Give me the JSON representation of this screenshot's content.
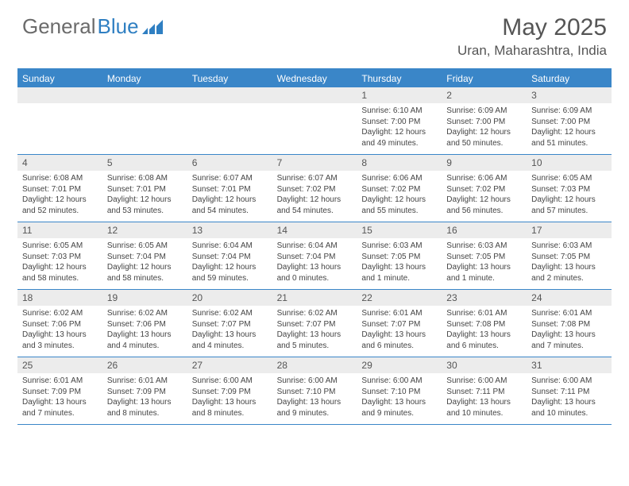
{
  "logo": {
    "word1": "General",
    "word2": "Blue"
  },
  "title": "May 2025",
  "location": "Uran, Maharashtra, India",
  "colors": {
    "header_bg": "#3a86c8",
    "daynum_bg": "#ececec",
    "text": "#555555",
    "details_text": "#444444"
  },
  "day_names": [
    "Sunday",
    "Monday",
    "Tuesday",
    "Wednesday",
    "Thursday",
    "Friday",
    "Saturday"
  ],
  "weeks": [
    [
      {
        "n": "",
        "sr": "",
        "ss": "",
        "dl": ""
      },
      {
        "n": "",
        "sr": "",
        "ss": "",
        "dl": ""
      },
      {
        "n": "",
        "sr": "",
        "ss": "",
        "dl": ""
      },
      {
        "n": "",
        "sr": "",
        "ss": "",
        "dl": ""
      },
      {
        "n": "1",
        "sr": "Sunrise: 6:10 AM",
        "ss": "Sunset: 7:00 PM",
        "dl": "Daylight: 12 hours and 49 minutes."
      },
      {
        "n": "2",
        "sr": "Sunrise: 6:09 AM",
        "ss": "Sunset: 7:00 PM",
        "dl": "Daylight: 12 hours and 50 minutes."
      },
      {
        "n": "3",
        "sr": "Sunrise: 6:09 AM",
        "ss": "Sunset: 7:00 PM",
        "dl": "Daylight: 12 hours and 51 minutes."
      }
    ],
    [
      {
        "n": "4",
        "sr": "Sunrise: 6:08 AM",
        "ss": "Sunset: 7:01 PM",
        "dl": "Daylight: 12 hours and 52 minutes."
      },
      {
        "n": "5",
        "sr": "Sunrise: 6:08 AM",
        "ss": "Sunset: 7:01 PM",
        "dl": "Daylight: 12 hours and 53 minutes."
      },
      {
        "n": "6",
        "sr": "Sunrise: 6:07 AM",
        "ss": "Sunset: 7:01 PM",
        "dl": "Daylight: 12 hours and 54 minutes."
      },
      {
        "n": "7",
        "sr": "Sunrise: 6:07 AM",
        "ss": "Sunset: 7:02 PM",
        "dl": "Daylight: 12 hours and 54 minutes."
      },
      {
        "n": "8",
        "sr": "Sunrise: 6:06 AM",
        "ss": "Sunset: 7:02 PM",
        "dl": "Daylight: 12 hours and 55 minutes."
      },
      {
        "n": "9",
        "sr": "Sunrise: 6:06 AM",
        "ss": "Sunset: 7:02 PM",
        "dl": "Daylight: 12 hours and 56 minutes."
      },
      {
        "n": "10",
        "sr": "Sunrise: 6:05 AM",
        "ss": "Sunset: 7:03 PM",
        "dl": "Daylight: 12 hours and 57 minutes."
      }
    ],
    [
      {
        "n": "11",
        "sr": "Sunrise: 6:05 AM",
        "ss": "Sunset: 7:03 PM",
        "dl": "Daylight: 12 hours and 58 minutes."
      },
      {
        "n": "12",
        "sr": "Sunrise: 6:05 AM",
        "ss": "Sunset: 7:04 PM",
        "dl": "Daylight: 12 hours and 58 minutes."
      },
      {
        "n": "13",
        "sr": "Sunrise: 6:04 AM",
        "ss": "Sunset: 7:04 PM",
        "dl": "Daylight: 12 hours and 59 minutes."
      },
      {
        "n": "14",
        "sr": "Sunrise: 6:04 AM",
        "ss": "Sunset: 7:04 PM",
        "dl": "Daylight: 13 hours and 0 minutes."
      },
      {
        "n": "15",
        "sr": "Sunrise: 6:03 AM",
        "ss": "Sunset: 7:05 PM",
        "dl": "Daylight: 13 hours and 1 minute."
      },
      {
        "n": "16",
        "sr": "Sunrise: 6:03 AM",
        "ss": "Sunset: 7:05 PM",
        "dl": "Daylight: 13 hours and 1 minute."
      },
      {
        "n": "17",
        "sr": "Sunrise: 6:03 AM",
        "ss": "Sunset: 7:05 PM",
        "dl": "Daylight: 13 hours and 2 minutes."
      }
    ],
    [
      {
        "n": "18",
        "sr": "Sunrise: 6:02 AM",
        "ss": "Sunset: 7:06 PM",
        "dl": "Daylight: 13 hours and 3 minutes."
      },
      {
        "n": "19",
        "sr": "Sunrise: 6:02 AM",
        "ss": "Sunset: 7:06 PM",
        "dl": "Daylight: 13 hours and 4 minutes."
      },
      {
        "n": "20",
        "sr": "Sunrise: 6:02 AM",
        "ss": "Sunset: 7:07 PM",
        "dl": "Daylight: 13 hours and 4 minutes."
      },
      {
        "n": "21",
        "sr": "Sunrise: 6:02 AM",
        "ss": "Sunset: 7:07 PM",
        "dl": "Daylight: 13 hours and 5 minutes."
      },
      {
        "n": "22",
        "sr": "Sunrise: 6:01 AM",
        "ss": "Sunset: 7:07 PM",
        "dl": "Daylight: 13 hours and 6 minutes."
      },
      {
        "n": "23",
        "sr": "Sunrise: 6:01 AM",
        "ss": "Sunset: 7:08 PM",
        "dl": "Daylight: 13 hours and 6 minutes."
      },
      {
        "n": "24",
        "sr": "Sunrise: 6:01 AM",
        "ss": "Sunset: 7:08 PM",
        "dl": "Daylight: 13 hours and 7 minutes."
      }
    ],
    [
      {
        "n": "25",
        "sr": "Sunrise: 6:01 AM",
        "ss": "Sunset: 7:09 PM",
        "dl": "Daylight: 13 hours and 7 minutes."
      },
      {
        "n": "26",
        "sr": "Sunrise: 6:01 AM",
        "ss": "Sunset: 7:09 PM",
        "dl": "Daylight: 13 hours and 8 minutes."
      },
      {
        "n": "27",
        "sr": "Sunrise: 6:00 AM",
        "ss": "Sunset: 7:09 PM",
        "dl": "Daylight: 13 hours and 8 minutes."
      },
      {
        "n": "28",
        "sr": "Sunrise: 6:00 AM",
        "ss": "Sunset: 7:10 PM",
        "dl": "Daylight: 13 hours and 9 minutes."
      },
      {
        "n": "29",
        "sr": "Sunrise: 6:00 AM",
        "ss": "Sunset: 7:10 PM",
        "dl": "Daylight: 13 hours and 9 minutes."
      },
      {
        "n": "30",
        "sr": "Sunrise: 6:00 AM",
        "ss": "Sunset: 7:11 PM",
        "dl": "Daylight: 13 hours and 10 minutes."
      },
      {
        "n": "31",
        "sr": "Sunrise: 6:00 AM",
        "ss": "Sunset: 7:11 PM",
        "dl": "Daylight: 13 hours and 10 minutes."
      }
    ]
  ]
}
